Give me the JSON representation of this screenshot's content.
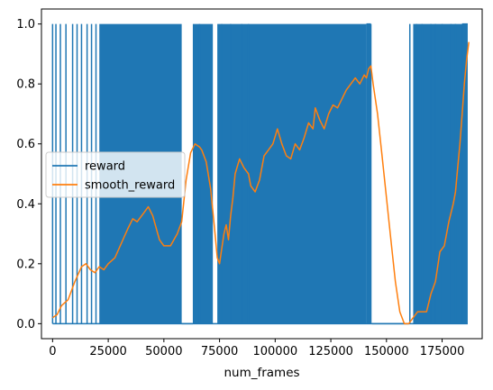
{
  "chart_data": {
    "type": "line",
    "xlabel": "num_frames",
    "ylabel": "",
    "xlim": [
      -5000,
      193000
    ],
    "ylim": [
      -0.05,
      1.05
    ],
    "xticks": [
      0,
      25000,
      50000,
      75000,
      100000,
      125000,
      150000,
      175000
    ],
    "xtick_labels": [
      "0",
      "25000",
      "50000",
      "75000",
      "100000",
      "125000",
      "150000",
      "175000"
    ],
    "yticks": [
      0.0,
      0.2,
      0.4,
      0.6,
      0.8,
      1.0
    ],
    "ytick_labels": [
      "0.0",
      "0.2",
      "0.4",
      "0.6",
      "0.8",
      "1.0"
    ],
    "grid": false,
    "legend_position": "center-left",
    "series": [
      {
        "name": "reward",
        "color": "#1f77b4",
        "style": "binary-step",
        "dense_ranges": [
          [
            21000,
            58000
          ],
          [
            63000,
            72000
          ],
          [
            74000,
            141000
          ],
          [
            162000,
            186000
          ]
        ],
        "sparse_one_x": [
          0,
          1500,
          3500,
          6000,
          9000,
          11000,
          13000,
          15500,
          17500,
          19500,
          66000,
          76000,
          80000,
          85000,
          88000,
          143000,
          160500,
          163500,
          166000,
          170000,
          172000,
          175000,
          179000,
          181000,
          184000
        ],
        "one_plateaus": [
          [
            141000,
            143000
          ],
          [
            184000,
            186500
          ]
        ],
        "zero_plateaus": [
          [
            58000,
            63000
          ],
          [
            143500,
            160000
          ]
        ]
      },
      {
        "name": "smooth_reward",
        "color": "#ff7f0e",
        "x": [
          0,
          2000,
          4000,
          7000,
          10000,
          13000,
          15000,
          17000,
          19000,
          21000,
          23000,
          25000,
          28000,
          31000,
          34000,
          36000,
          38000,
          41000,
          43000,
          45000,
          48000,
          50000,
          53000,
          56000,
          58000,
          60000,
          62000,
          64000,
          66000,
          67000,
          69000,
          71000,
          73000,
          74000,
          75000,
          76000,
          77000,
          78000,
          79000,
          80000,
          81000,
          82000,
          84000,
          86000,
          88000,
          89000,
          91000,
          93000,
          95000,
          97000,
          99000,
          101000,
          103000,
          105000,
          107000,
          109000,
          111000,
          113000,
          115000,
          117000,
          118000,
          120000,
          122000,
          124000,
          126000,
          128000,
          130000,
          132000,
          134000,
          136000,
          138000,
          140000,
          141000,
          142000,
          143000,
          144000,
          146000,
          148000,
          150000,
          152000,
          154000,
          156000,
          158000,
          160000,
          162000,
          164000,
          166000,
          168000,
          170000,
          172000,
          174000,
          176000,
          178000,
          180000,
          181000,
          182000,
          183000,
          184000,
          185000,
          186000,
          187000
        ],
        "values": [
          0.02,
          0.03,
          0.06,
          0.08,
          0.14,
          0.19,
          0.2,
          0.18,
          0.17,
          0.19,
          0.18,
          0.2,
          0.22,
          0.27,
          0.32,
          0.35,
          0.34,
          0.37,
          0.39,
          0.36,
          0.28,
          0.26,
          0.26,
          0.3,
          0.34,
          0.48,
          0.57,
          0.6,
          0.59,
          0.58,
          0.54,
          0.45,
          0.3,
          0.22,
          0.2,
          0.25,
          0.3,
          0.33,
          0.28,
          0.36,
          0.42,
          0.5,
          0.55,
          0.52,
          0.5,
          0.46,
          0.44,
          0.48,
          0.56,
          0.58,
          0.6,
          0.65,
          0.6,
          0.56,
          0.55,
          0.6,
          0.58,
          0.62,
          0.67,
          0.65,
          0.72,
          0.68,
          0.65,
          0.7,
          0.73,
          0.72,
          0.75,
          0.78,
          0.8,
          0.82,
          0.8,
          0.83,
          0.82,
          0.85,
          0.86,
          0.8,
          0.7,
          0.56,
          0.42,
          0.28,
          0.14,
          0.04,
          0.0,
          0.0,
          0.02,
          0.04,
          0.04,
          0.04,
          0.1,
          0.14,
          0.24,
          0.26,
          0.34,
          0.4,
          0.44,
          0.52,
          0.6,
          0.7,
          0.8,
          0.88,
          0.94
        ]
      }
    ]
  }
}
